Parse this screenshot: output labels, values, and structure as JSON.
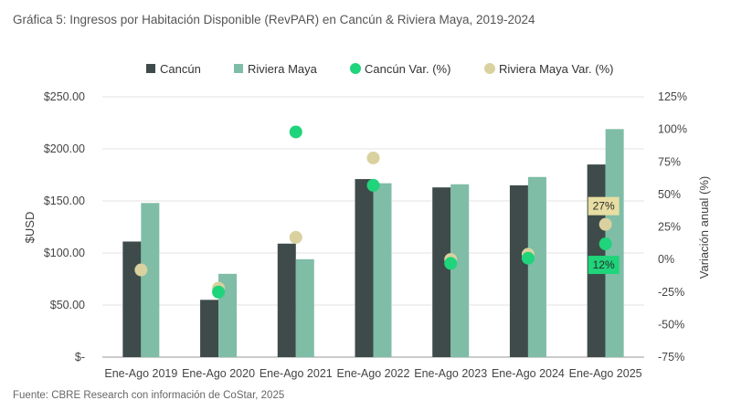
{
  "title": "Gráfica 5: Ingresos por Habitación Disponible (RevPAR) en Cancún & Riviera Maya, 2019-2024",
  "source": "Fuente: CBRE Research con información de CoStar, 2025",
  "colors": {
    "cancun": "#3e4b4a",
    "riviera": "#7fbda7",
    "cancun_var": "#1fd47a",
    "riviera_var": "#d9d19f",
    "label_riviera_bg": "#e8dea3",
    "label_cancun_bg": "#1fd47a"
  },
  "chart_data": {
    "type": "bar",
    "categories": [
      "Ene-Ago 2019",
      "Ene-Ago 2020",
      "Ene-Ago 2021",
      "Ene-Ago 2022",
      "Ene-Ago 2023",
      "Ene-Ago 2024",
      "Ene-Ago 2025"
    ],
    "series": [
      {
        "name": "Cancún",
        "type": "bar",
        "axis": "left",
        "values": [
          111,
          55,
          109,
          171,
          163,
          165,
          185
        ]
      },
      {
        "name": "Riviera Maya",
        "type": "bar",
        "axis": "left",
        "values": [
          148,
          80,
          94,
          167,
          166,
          173,
          219
        ]
      },
      {
        "name": "Cancún Var. (%)",
        "type": "scatter",
        "axis": "right",
        "values": [
          null,
          -25,
          98,
          57,
          -3,
          1,
          12
        ]
      },
      {
        "name": "Riviera Maya Var. (%)",
        "type": "scatter",
        "axis": "right",
        "values": [
          -8,
          -22,
          17,
          78,
          0,
          4,
          27
        ]
      }
    ],
    "ylabel": "$USD",
    "y2label": "Variación anual (%)",
    "ylim": [
      0,
      250
    ],
    "y2lim": [
      -75,
      125
    ],
    "y_ticks": [
      "$-",
      "$50.00",
      "$100.00",
      "$150.00",
      "$200.00",
      "$250.00"
    ],
    "y2_ticks": [
      "-75%",
      "-50%",
      "-25%",
      "0%",
      "25%",
      "50%",
      "75%",
      "100%",
      "125%"
    ],
    "annotations": [
      "27%",
      "12%"
    ],
    "legend": [
      "Cancún",
      "Riviera Maya",
      "Cancún Var. (%)",
      "Riviera Maya Var. (%)"
    ],
    "legend_position": "top",
    "grid": true
  }
}
